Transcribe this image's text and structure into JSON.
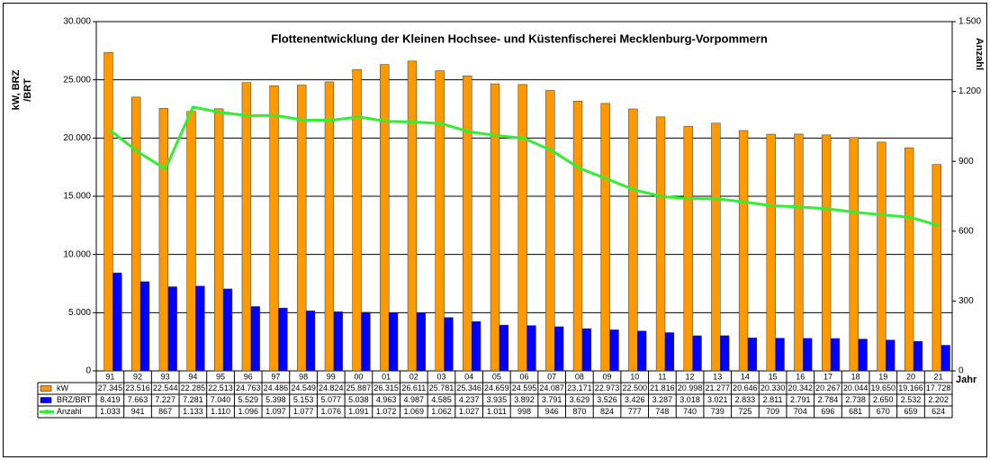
{
  "chart_data": {
    "type": "bar_line",
    "title": "Flottenentwicklung der Kleinen Hochsee- und Küstenfischerei Mecklenburg-Vorpommern",
    "y_label": [
      "kW, BRZ",
      "/BRT"
    ],
    "y2_label": "Anzahl",
    "x_label": "Jahr",
    "categories": [
      "91",
      "92",
      "93",
      "94",
      "95",
      "96",
      "97",
      "98",
      "99",
      "00",
      "01",
      "02",
      "03",
      "04",
      "05",
      "06",
      "07",
      "08",
      "09",
      "10",
      "11",
      "12",
      "13",
      "14",
      "15",
      "16",
      "17",
      "18",
      "19",
      "20",
      "21"
    ],
    "series": [
      {
        "name": "kW",
        "type": "bar",
        "color": "#ff9900",
        "values": [
          27345,
          23516,
          22544,
          22285,
          22513,
          24763,
          24486,
          24549,
          24824,
          25887,
          26315,
          26611,
          25781,
          25346,
          24659,
          24595,
          24087,
          23171,
          22973,
          22500,
          21816,
          20998,
          21277,
          20646,
          20330,
          20342,
          20267,
          20044,
          19650,
          19166,
          17728
        ],
        "value_labels": [
          "27.345",
          "23.516",
          "22.544",
          "22.285",
          "22.513",
          "24.763",
          "24.486",
          "24.549",
          "24.824",
          "25.887",
          "26.315",
          "26.611",
          "25.781",
          "25.346",
          "24.659",
          "24.595",
          "24.087",
          "23.171",
          "22.973",
          "22.500",
          "21.816",
          "20.998",
          "21.277",
          "20.646",
          "20.330",
          "20.342",
          "20.267",
          "20.044",
          "19.650",
          "19.166",
          "17.728"
        ]
      },
      {
        "name": "BRZ/BRT",
        "type": "bar",
        "color": "#0000ff",
        "values": [
          8419,
          7663,
          7227,
          7281,
          7040,
          5529,
          5398,
          5153,
          5077,
          5038,
          4963,
          4987,
          4585,
          4237,
          3935,
          3892,
          3791,
          3629,
          3526,
          3426,
          3287,
          3018,
          3021,
          2833,
          2811,
          2791,
          2784,
          2738,
          2650,
          2532,
          2202
        ],
        "value_labels": [
          "8.419",
          "7.663",
          "7.227",
          "7.281",
          "7.040",
          "5.529",
          "5.398",
          "5.153",
          "5.077",
          "5.038",
          "4.963",
          "4.987",
          "4.585",
          "4.237",
          "3.935",
          "3.892",
          "3.791",
          "3.629",
          "3.526",
          "3.426",
          "3.287",
          "3.018",
          "3.021",
          "2.833",
          "2.811",
          "2.791",
          "2.784",
          "2.738",
          "2.650",
          "2.532",
          "2.202"
        ]
      },
      {
        "name": "Anzahl",
        "type": "line",
        "axis": "y2",
        "color": "#33ee33",
        "values": [
          1033,
          941,
          867,
          1133,
          1110,
          1096,
          1097,
          1077,
          1076,
          1091,
          1072,
          1069,
          1062,
          1027,
          1011,
          998,
          946,
          870,
          824,
          777,
          748,
          740,
          739,
          725,
          709,
          704,
          696,
          681,
          670,
          659,
          624
        ],
        "value_labels": [
          "1.033",
          "941",
          "867",
          "1.133",
          "1.110",
          "1.096",
          "1.097",
          "1.077",
          "1.076",
          "1.091",
          "1.072",
          "1.069",
          "1.062",
          "1.027",
          "1.011",
          "998",
          "946",
          "870",
          "824",
          "777",
          "748",
          "740",
          "739",
          "725",
          "709",
          "704",
          "696",
          "681",
          "670",
          "659",
          "624"
        ]
      }
    ],
    "ylim": [
      0,
      30000
    ],
    "yticks": [
      0,
      {
        "value": 5000,
        "label": "5.000"
      },
      {
        "value": 10000,
        "label": "10.000"
      },
      {
        "value": 15000,
        "label": "15.000"
      },
      {
        "value": 20000,
        "label": "20.000"
      },
      {
        "value": 25000,
        "label": "25.000"
      },
      {
        "value": 30000,
        "label": "30.000"
      }
    ],
    "y2lim": [
      0,
      1500
    ],
    "y2ticks": [
      0,
      300,
      600,
      900,
      {
        "value": 1200,
        "label": "1.200"
      },
      {
        "value": 1500,
        "label": "1.500"
      }
    ],
    "grid": true
  }
}
